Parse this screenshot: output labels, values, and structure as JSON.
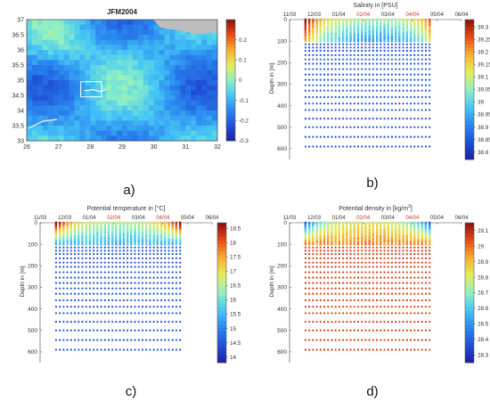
{
  "chart_data": [
    {
      "id": "a",
      "panel_label": "a)",
      "type": "heatmap",
      "title": "JFM2004",
      "x_ticks": [
        "26",
        "27",
        "28",
        "29",
        "30",
        "31",
        "32"
      ],
      "y_ticks": [
        "33",
        "33.5",
        "34",
        "34.5",
        "35",
        "35.5",
        "36",
        "36.5",
        "37"
      ],
      "xlim": [
        26,
        32
      ],
      "ylim": [
        33,
        37
      ],
      "colorbar": {
        "ticks": [
          "0.2",
          "0.1",
          "0",
          "-0.1",
          "-0.2",
          "-0.3"
        ],
        "range": [
          -0.3,
          0.3
        ]
      },
      "study_box": {
        "lon": [
          27.7,
          28.35
        ],
        "lat": [
          34.45,
          34.95
        ]
      },
      "colormap": [
        "#1e1ea0",
        "#1f4fd6",
        "#2a86f0",
        "#45c6f5",
        "#8ef0c4",
        "#e4ee5c",
        "#f7b030",
        "#ea4b16",
        "#8a1010"
      ]
    },
    {
      "id": "b",
      "panel_label": "b)",
      "type": "heatmap",
      "title": "Salinity in [PSU]",
      "ylabel": "Depth in [m]",
      "x_ticks": [
        "11/03",
        "12/03",
        "01/04",
        "02/04",
        "03/04",
        "04/04",
        "05/04",
        "06/04"
      ],
      "y_ticks": [
        "0",
        "100",
        "200",
        "300",
        "400",
        "500",
        "600"
      ],
      "ylim": [
        0,
        650
      ],
      "colorbar": {
        "ticks": [
          "39.3",
          "39.25",
          "39.2",
          "39.15",
          "39.1",
          "39.05",
          "39",
          "38.95",
          "38.9",
          "38.85",
          "38.8"
        ],
        "range": [
          38.77,
          39.33
        ]
      }
    },
    {
      "id": "c",
      "panel_label": "c)",
      "type": "heatmap",
      "title": "Potential temperature in [°C]",
      "ylabel": "Depth in [m]",
      "x_ticks": [
        "11/03",
        "12/03",
        "01/04",
        "02/04",
        "03/04",
        "04/04",
        "05/04",
        "06/04"
      ],
      "y_ticks": [
        "0",
        "100",
        "200",
        "300",
        "400",
        "500",
        "600"
      ],
      "ylim": [
        0,
        650
      ],
      "colorbar": {
        "ticks": [
          "18.5",
          "18",
          "17.5",
          "17",
          "16.5",
          "16",
          "15.5",
          "15",
          "14.5",
          "14"
        ],
        "range": [
          13.8,
          18.7
        ]
      }
    },
    {
      "id": "d",
      "panel_label": "d)",
      "type": "heatmap",
      "title": "Potential density in [kg/m",
      "title_sup": "3",
      "title_end": "]",
      "ylabel": "Depth in [m]",
      "x_ticks": [
        "11/03",
        "12/03",
        "01/04",
        "02/04",
        "03/04",
        "04/04",
        "05/04",
        "06/04"
      ],
      "y_ticks": [
        "0",
        "100",
        "200",
        "300",
        "400",
        "500",
        "600"
      ],
      "ylim": [
        0,
        650
      ],
      "colorbar": {
        "ticks": [
          "29.1",
          "29",
          "28.9",
          "28.8",
          "28.7",
          "28.6",
          "28.5",
          "28.4",
          "28.3"
        ],
        "range": [
          28.25,
          29.15
        ]
      }
    }
  ]
}
